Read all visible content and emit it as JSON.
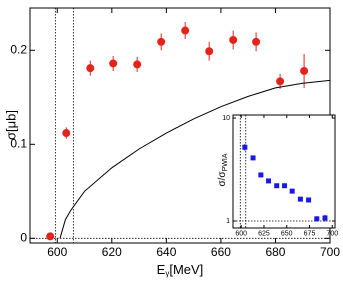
{
  "chart_data": [
    {
      "type": "scatter",
      "x_label": {
        "main": "E",
        "sub": "γ",
        "unit": "[MeV]"
      },
      "y_label": "σ[μb]",
      "xlim": [
        590,
        700
      ],
      "ylim": [
        -0.005,
        0.245
      ],
      "xticks": [
        600,
        620,
        640,
        660,
        680,
        700
      ],
      "yticks": [
        0,
        0.1,
        0.2
      ],
      "vlines": [
        599.3,
        605.9
      ],
      "hline": 0,
      "series": [
        {
          "kind": "points",
          "marker": "circle",
          "color": "#e3241b",
          "x": [
            597.4,
            603.3,
            612.1,
            620.5,
            629.3,
            638.1,
            646.9,
            655.7,
            664.5,
            672.9,
            681.7,
            690.5
          ],
          "values": [
            0.002,
            0.112,
            0.181,
            0.186,
            0.185,
            0.209,
            0.221,
            0.199,
            0.211,
            0.209,
            0.167,
            0.178
          ],
          "errors": [
            0.002,
            0.006,
            0.008,
            0.008,
            0.008,
            0.009,
            0.009,
            0.01,
            0.01,
            0.01,
            0.008,
            0.018
          ]
        },
        {
          "kind": "line",
          "color": "#000000",
          "x": [
            601,
            603,
            605,
            610,
            620,
            630,
            640,
            650,
            660,
            670,
            680,
            690,
            700
          ],
          "values": [
            0,
            0.02,
            0.03,
            0.05,
            0.075,
            0.095,
            0.112,
            0.127,
            0.14,
            0.151,
            0.16,
            0.165,
            0.168
          ]
        }
      ]
    },
    {
      "type": "scatter",
      "log_y": true,
      "y_label": {
        "main": "σ/σ",
        "sub": "PWIA"
      },
      "xlim": [
        591,
        703
      ],
      "ylim": [
        0.855,
        10.7
      ],
      "xticks": [
        600,
        625,
        650,
        675,
        700
      ],
      "yticks": [
        1,
        10
      ],
      "vlines": [
        599,
        605
      ],
      "hline": 1,
      "series": [
        {
          "kind": "points",
          "marker": "square",
          "color": "#1a1adf",
          "x": [
            604,
            613,
            621.6,
            630,
            639,
            647.6,
            656,
            665,
            674,
            683,
            692
          ],
          "values": [
            5.2,
            4.1,
            2.8,
            2.45,
            2.2,
            2.2,
            1.95,
            1.63,
            1.6,
            1.05,
            1.07
          ],
          "errors": [
            0.4,
            0.2,
            0.1,
            0.1,
            0.08,
            0.08,
            0.07,
            0.06,
            0.06,
            0.06,
            0.08
          ]
        }
      ]
    }
  ]
}
